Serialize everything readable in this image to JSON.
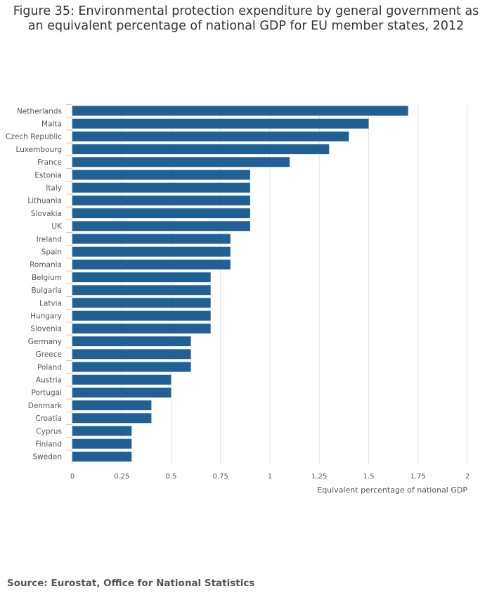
{
  "title_line1": "Figure 35: Environmental protection expenditure by general government as",
  "title_line2": "an equivalent percentage of national GDP for EU member states, 2012",
  "source": "Source: Eurostat, Office for National Statistics",
  "colors": {
    "bar": "#206095",
    "grid": "#e3e3e3",
    "axis": "#cccccc"
  },
  "chart_data": {
    "type": "bar",
    "orientation": "horizontal",
    "title": "Figure 35: Environmental protection expenditure by general government as an equivalent percentage of national GDP for EU member states, 2012",
    "xlabel": "Equivalent percentage of national GDP",
    "ylabel": "",
    "xlim": [
      0,
      2
    ],
    "ticks": [
      0,
      0.25,
      0.5,
      0.75,
      1,
      1.25,
      1.5,
      1.75,
      2
    ],
    "tick_labels": [
      "0",
      "0.25",
      "0.5",
      "0.75",
      "1",
      "1.25",
      "1.5",
      "1.75",
      "2"
    ],
    "grid": true,
    "categories": [
      "Netherlands",
      "Malta",
      "Czech Republic",
      "Luxembourg",
      "France",
      "Estonia",
      "Italy",
      "Lithuania",
      "Slovakia",
      "UK",
      "Ireland",
      "Spain",
      "Romania",
      "Belgium",
      "Bulgaria",
      "Latvia",
      "Hungary",
      "Slovenia",
      "Germany",
      "Greece",
      "Poland",
      "Austria",
      "Portugal",
      "Denmark",
      "Croatia",
      "Cyprus",
      "Finland",
      "Sweden"
    ],
    "values": [
      1.7,
      1.5,
      1.4,
      1.3,
      1.1,
      0.9,
      0.9,
      0.9,
      0.9,
      0.9,
      0.8,
      0.8,
      0.8,
      0.7,
      0.7,
      0.7,
      0.7,
      0.7,
      0.6,
      0.6,
      0.6,
      0.5,
      0.5,
      0.4,
      0.4,
      0.3,
      0.3,
      0.3
    ]
  }
}
